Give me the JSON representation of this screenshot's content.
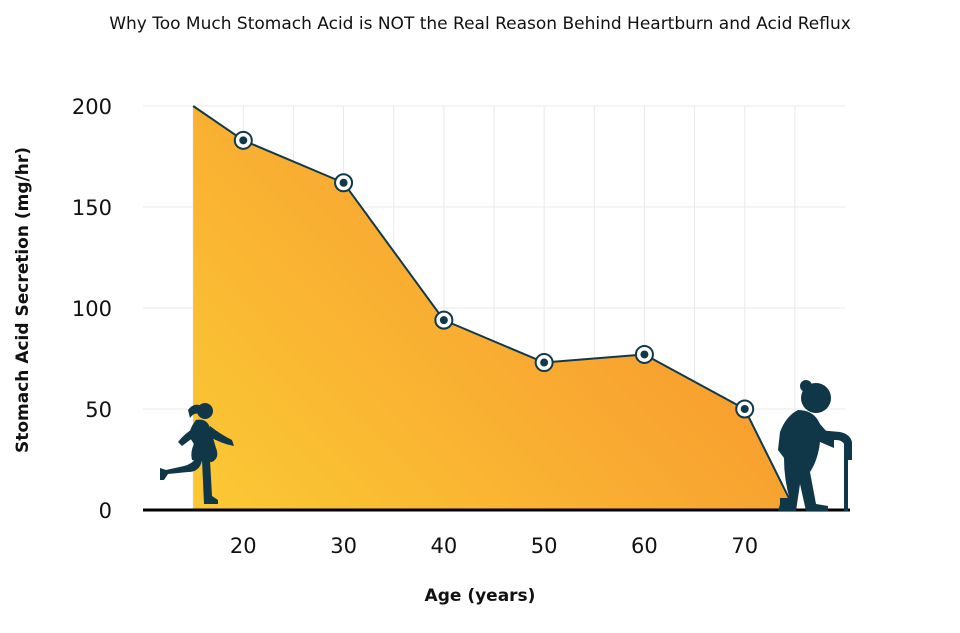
{
  "chart_data": {
    "type": "area",
    "title": "Why Too Much Stomach Acid is NOT the Real Reason Behind Heartburn and Acid Reflux",
    "xlabel": "Age (years)",
    "ylabel": "Stomach Acid Secretion (mg/hr)",
    "x_ticks": [
      20,
      30,
      40,
      50,
      60,
      70
    ],
    "y_ticks": [
      0,
      50,
      100,
      150,
      200
    ],
    "xlim": [
      10,
      80
    ],
    "ylim": [
      0,
      200
    ],
    "grid": true,
    "series": [
      {
        "x": [
          15,
          20,
          30,
          40,
          50,
          60,
          70,
          75
        ],
        "y": [
          200,
          183,
          162,
          94,
          73,
          77,
          50,
          0
        ],
        "markers": [
          false,
          true,
          true,
          true,
          true,
          true,
          true,
          false
        ]
      }
    ],
    "colors": {
      "fill_start": "#fbc934",
      "fill_end": "#f7932f",
      "line": "#11394a",
      "marker": "#11394a",
      "figure": "#0f3747",
      "axis": "#000000"
    },
    "icons": [
      "girl-running-icon",
      "elderly-woman-cane-icon"
    ]
  }
}
